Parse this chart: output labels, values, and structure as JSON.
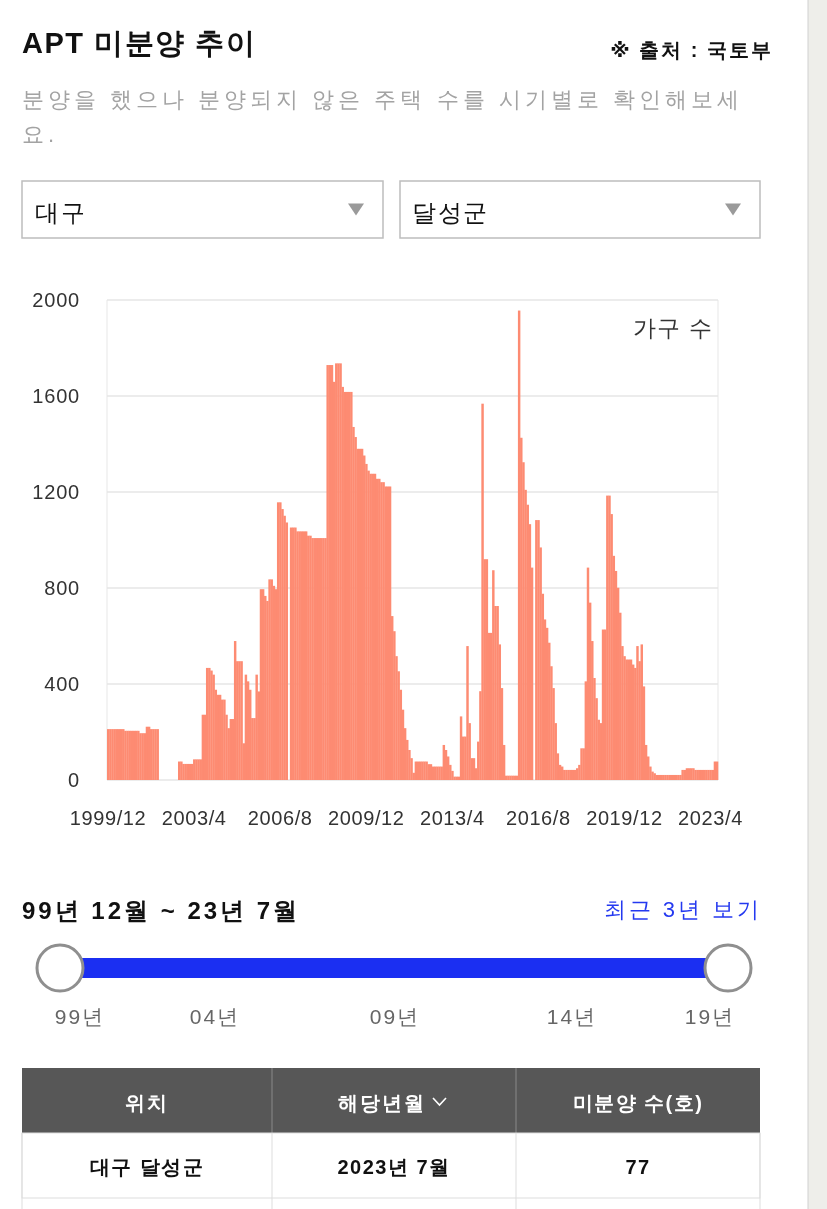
{
  "chart_data": {
    "type": "bar",
    "title": "APT 미분양 추이",
    "subtitle": "분양을 했으나 분양되지 않은 주택 수를 시기별로 확인해보세요.",
    "ylabel": "가구 수",
    "categories": [
      "1999/12",
      null,
      null,
      null,
      null,
      null,
      null,
      null,
      null,
      null,
      null,
      null,
      null,
      null,
      null,
      null,
      null,
      null,
      null,
      null,
      null,
      null,
      null,
      null,
      null,
      null,
      null,
      null,
      null,
      null,
      null,
      null,
      null,
      null,
      null,
      null,
      null,
      null,
      null,
      null,
      "2003/4",
      null,
      null,
      null,
      null,
      null,
      null,
      null,
      null,
      null,
      null,
      null,
      null,
      null,
      null,
      null,
      null,
      null,
      null,
      null,
      null,
      null,
      null,
      null,
      null,
      null,
      null,
      null,
      null,
      null,
      null,
      null,
      null,
      null,
      null,
      null,
      null,
      null,
      null,
      null,
      "2006/8",
      null,
      null,
      null,
      null,
      null,
      null,
      null,
      null,
      null,
      null,
      null,
      null,
      null,
      null,
      null,
      null,
      null,
      null,
      null,
      null,
      null,
      null,
      null,
      null,
      null,
      null,
      null,
      null,
      null,
      null,
      null,
      null,
      null,
      null,
      null,
      null,
      null,
      null,
      null,
      "2009/12",
      null,
      null,
      null,
      null,
      null,
      null,
      null,
      null,
      null,
      null,
      null,
      null,
      null,
      null,
      null,
      null,
      null,
      null,
      null,
      null,
      null,
      null,
      null,
      null,
      null,
      null,
      null,
      null,
      null,
      null,
      null,
      null,
      null,
      null,
      null,
      null,
      null,
      null,
      null,
      "2013/4",
      null,
      null,
      null,
      null,
      null,
      null,
      null,
      null,
      null,
      null,
      null,
      null,
      null,
      null,
      null,
      null,
      null,
      null,
      null,
      null,
      null,
      null,
      null,
      null,
      null,
      null,
      null,
      null,
      null,
      null,
      null,
      null,
      null,
      null,
      null,
      null,
      null,
      null,
      null,
      "2016/8",
      null,
      null,
      null,
      null,
      null,
      null,
      null,
      null,
      null,
      null,
      null,
      null,
      null,
      null,
      null,
      null,
      null,
      null,
      null,
      null,
      null,
      null,
      null,
      null,
      null,
      null,
      null,
      null,
      null,
      null,
      null,
      null,
      null,
      null,
      null,
      null,
      null,
      null,
      null,
      "2019/12",
      null,
      null,
      null,
      null,
      null,
      null,
      null,
      null,
      null,
      null,
      null,
      null,
      null,
      null,
      null,
      null,
      null,
      null,
      null,
      null,
      null,
      null,
      null,
      null,
      null,
      null,
      null,
      null,
      null,
      null,
      null,
      null,
      null,
      null,
      null,
      null,
      null,
      null,
      null,
      "2023/4",
      null,
      null,
      null
    ],
    "values": [
      212,
      212,
      212,
      212,
      212,
      212,
      212,
      212,
      205,
      205,
      205,
      205,
      205,
      205,
      205,
      195,
      195,
      195,
      222,
      222,
      212,
      212,
      212,
      212,
      0,
      0,
      0,
      0,
      0,
      0,
      0,
      0,
      0,
      77,
      77,
      67,
      67,
      67,
      67,
      67,
      86,
      86,
      86,
      86,
      272,
      272,
      467,
      467,
      456,
      439,
      376,
      355,
      355,
      335,
      335,
      272,
      216,
      254,
      254,
      579,
      495,
      495,
      495,
      153,
      439,
      411,
      376,
      258,
      258,
      439,
      369,
      795,
      795,
      767,
      746,
      836,
      836,
      809,
      795,
      1157,
      1157,
      1129,
      1101,
      1073,
      0,
      1052,
      1052,
      1052,
      1036,
      1036,
      1036,
      1036,
      1036,
      1018,
      1018,
      1008,
      1008,
      1008,
      1008,
      1008,
      1008,
      1008,
      1729,
      1729,
      1729,
      1659,
      1736,
      1736,
      1736,
      1638,
      1617,
      1617,
      1617,
      1617,
      1471,
      1429,
      1380,
      1380,
      1380,
      1352,
      1317,
      1289,
      1276,
      1276,
      1276,
      1255,
      1255,
      1241,
      1241,
      1223,
      1223,
      1223,
      683,
      620,
      516,
      453,
      376,
      293,
      216,
      167,
      125,
      91,
      30,
      77,
      77,
      77,
      77,
      77,
      77,
      66,
      66,
      56,
      56,
      56,
      56,
      56,
      146,
      125,
      98,
      63,
      38,
      14,
      14,
      14,
      265,
      181,
      181,
      558,
      237,
      91,
      91,
      49,
      160,
      370,
      1568,
      920,
      920,
      613,
      613,
      874,
      725,
      725,
      565,
      383,
      146,
      18,
      18,
      18,
      18,
      18,
      18,
      1956,
      1426,
      1324,
      1209,
      1147,
      1066,
      885,
      0,
      1083,
      1083,
      969,
      776,
      669,
      634,
      572,
      474,
      383,
      237,
      111,
      63,
      56,
      42,
      42,
      42,
      42,
      42,
      42,
      49,
      63,
      132,
      132,
      411,
      885,
      739,
      579,
      425,
      341,
      251,
      237,
      627,
      627,
      1185,
      1185,
      1108,
      934,
      871,
      801,
      697,
      558,
      516,
      502,
      502,
      502,
      481,
      467,
      558,
      495,
      565,
      390,
      146,
      98,
      56,
      35,
      28,
      21,
      21,
      21,
      21,
      21,
      21,
      21,
      21,
      21,
      21,
      21,
      21,
      42,
      42,
      49,
      49,
      49,
      49,
      42,
      42,
      42,
      42,
      42,
      42,
      42,
      42,
      42,
      77,
      77
    ],
    "color": "#fd8b72",
    "ylim": [
      0,
      2000
    ],
    "yticks": [
      0,
      400,
      800,
      1200,
      1600,
      2000
    ],
    "grid": "y",
    "annotations": [
      "※ 출처 : 국토부",
      "대구",
      "달성군",
      "99년 12월 ~ 23년 7월",
      "최근 3년 보기",
      "99년",
      "04년",
      "09년",
      "14년",
      "19년",
      "위치",
      "해당년월",
      "미분양 수(호)",
      "대구 달성군",
      "2023년 7월",
      "77"
    ]
  }
}
